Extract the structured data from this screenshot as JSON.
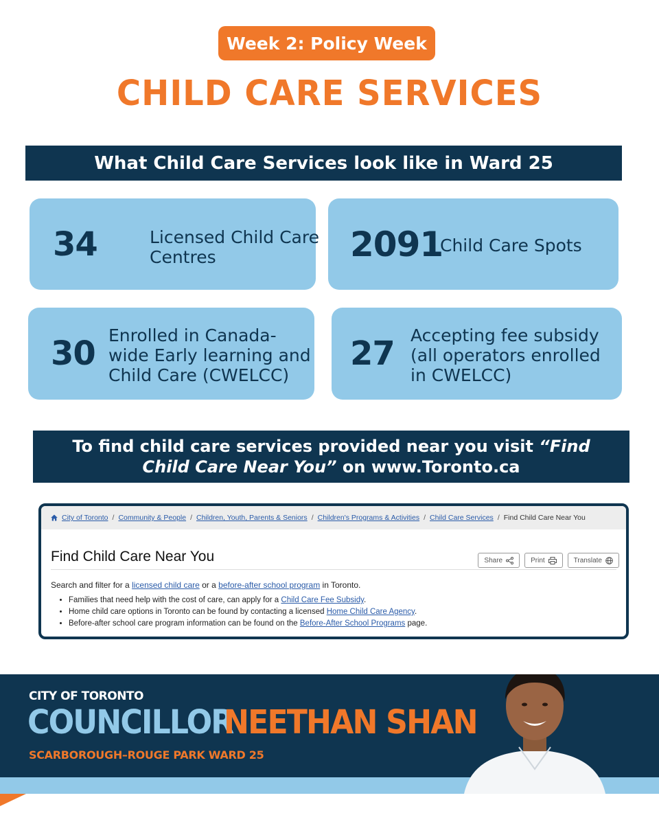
{
  "badge": "Week 2: Policy Week",
  "title": "CHILD CARE SERVICES",
  "band_top": "What Child Care Services look like in Ward 25",
  "stats": [
    {
      "number": "34",
      "label": "Licensed Child Care Centres"
    },
    {
      "number": "2091",
      "label": "Child Care Spots"
    },
    {
      "number": "30",
      "label": "Enrolled in Canada-wide Early learning and Child Care (CWELCC)"
    },
    {
      "number": "27",
      "label": "Accepting fee subsidy (all operators enrolled in CWELCC)"
    }
  ],
  "band_mid": {
    "pre": "To find child care services provided near you visit ",
    "link": "“Find Child Care Near You”",
    "post": " on www.Toronto.ca"
  },
  "webpage": {
    "breadcrumbs": [
      "City of Toronto",
      "Community & People",
      "Children, Youth, Parents & Seniors",
      "Children's Programs & Activities",
      "Child Care Services"
    ],
    "current": "Find Child Care Near You",
    "heading": "Find Child Care Near You",
    "buttons": {
      "share": "Share",
      "print": "Print",
      "translate": "Translate"
    },
    "intro": {
      "t1": "Search and filter for a ",
      "l1": "licensed child care",
      "t2": " or a ",
      "l2": "before-after school program",
      "t3": " in Toronto."
    },
    "bullets": [
      {
        "pre": "Families that need help with the cost of care, can apply for a ",
        "link": "Child Care Fee Subsidy",
        "post": "."
      },
      {
        "pre": "Home child care options in Toronto can be found by contacting a licensed ",
        "link": "Home Child Care Agency",
        "post": "."
      },
      {
        "pre": "Before-after school care program information can be found on the ",
        "link": "Before-After School Programs",
        "post": " page."
      }
    ]
  },
  "footer": {
    "city": "CITY OF TORONTO",
    "role": "COUNCILLOR",
    "name": "NEETHAN SHAN",
    "ward": "SCARBOROUGH–ROUGE PARK WARD 25"
  },
  "colors": {
    "orange": "#f0782a",
    "navy": "#0f3550",
    "light_blue": "#92c9e8",
    "link": "#2a5ba8"
  }
}
